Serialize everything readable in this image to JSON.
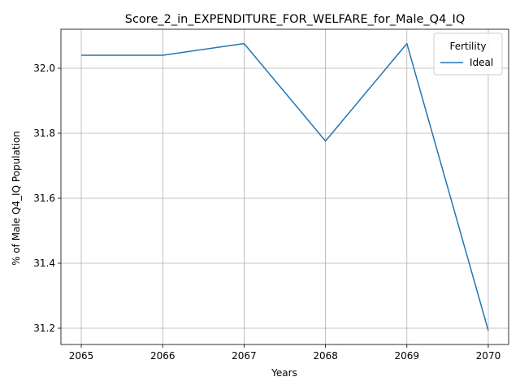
{
  "chart_data": {
    "type": "line",
    "title": "Score_2_in_EXPENDITURE_FOR_WELFARE_for_Male_Q4_IQ",
    "xlabel": "Years",
    "ylabel": "% of Male Q4_IQ Population",
    "x": [
      2065,
      2066,
      2067,
      2068,
      2069,
      2070
    ],
    "xticks": [
      "2065",
      "2066",
      "2067",
      "2068",
      "2069",
      "2070"
    ],
    "yticks": [
      "31.2",
      "31.4",
      "31.6",
      "31.8",
      "32.0"
    ],
    "ytick_values": [
      31.2,
      31.4,
      31.6,
      31.8,
      32.0
    ],
    "xlim": [
      2064.75,
      2070.25
    ],
    "ylim": [
      31.15,
      32.12
    ],
    "grid": true,
    "legend": {
      "title": "Fertility",
      "placement": "top-right"
    },
    "series": [
      {
        "name": "Ideal",
        "color": "#1f77b4",
        "values": [
          32.04,
          32.04,
          32.076,
          31.776,
          32.076,
          31.193
        ]
      }
    ]
  }
}
